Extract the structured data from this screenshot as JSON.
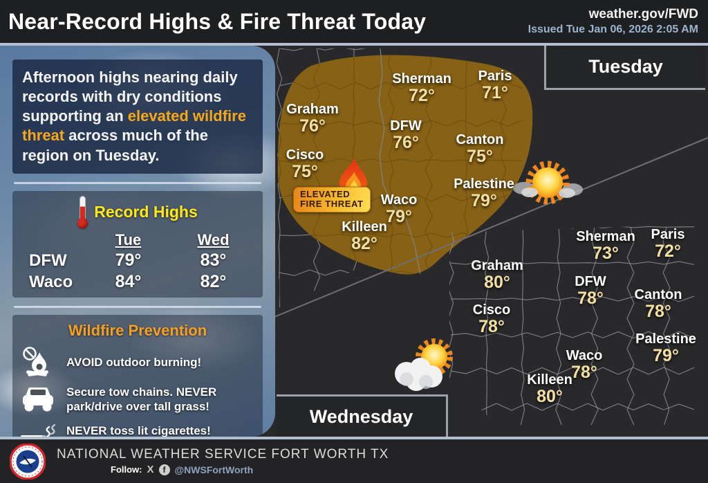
{
  "header": {
    "title": "Near-Record Highs & Fire Threat Today",
    "site": "weather.gov/FWD",
    "issued": "Issued Tue Jan 06, 2026 2:05 AM"
  },
  "summary": {
    "pre": "Afternoon highs nearing daily records with dry conditions supporting an ",
    "highlight": "elevated wildfire threat",
    "post": " across much of the region on Tuesday."
  },
  "record_highs": {
    "title": "Record Highs",
    "columns": [
      "Tue",
      "Wed"
    ],
    "rows": [
      {
        "city": "DFW",
        "tue": "79°",
        "wed": "83°"
      },
      {
        "city": "Waco",
        "tue": "84°",
        "wed": "82°"
      }
    ]
  },
  "wildfire_prevention": {
    "title": "Wildfire Prevention",
    "tips": [
      {
        "icon": "no-burning-icon",
        "text": "AVOID outdoor burning!"
      },
      {
        "icon": "car-icon",
        "text": "Secure tow chains. NEVER park/drive over tall grass!"
      },
      {
        "icon": "cigarette-icon",
        "text": "NEVER toss lit cigarettes!"
      }
    ]
  },
  "fire_threat_badge": {
    "line1": "ELEVATED",
    "line2": "FIRE THREAT"
  },
  "maps": {
    "tuesday": {
      "label": "Tuesday",
      "condition_icon": "mostly-sunny-icon",
      "cities": [
        {
          "name": "Sherman",
          "temp": "72°"
        },
        {
          "name": "Paris",
          "temp": "71°"
        },
        {
          "name": "Graham",
          "temp": "76°"
        },
        {
          "name": "DFW",
          "temp": "76°"
        },
        {
          "name": "Canton",
          "temp": "75°"
        },
        {
          "name": "Cisco",
          "temp": "75°"
        },
        {
          "name": "Palestine",
          "temp": "79°"
        },
        {
          "name": "Waco",
          "temp": "79°"
        },
        {
          "name": "Killeen",
          "temp": "82°"
        }
      ]
    },
    "wednesday": {
      "label": "Wednesday",
      "condition_icon": "partly-cloudy-icon",
      "cities": [
        {
          "name": "Sherman",
          "temp": "73°"
        },
        {
          "name": "Paris",
          "temp": "72°"
        },
        {
          "name": "Graham",
          "temp": "80°"
        },
        {
          "name": "DFW",
          "temp": "78°"
        },
        {
          "name": "Canton",
          "temp": "78°"
        },
        {
          "name": "Cisco",
          "temp": "78°"
        },
        {
          "name": "Palestine",
          "temp": "79°"
        },
        {
          "name": "Waco",
          "temp": "78°"
        },
        {
          "name": "Killeen",
          "temp": "80°"
        }
      ]
    }
  },
  "footer": {
    "org": "NATIONAL WEATHER SERVICE FORT WORTH TX",
    "follow": "Follow:",
    "handle": "@NWSFortWorth"
  },
  "colors": {
    "accent_orange": "#f5a81c",
    "record_yellow": "#ffe81a",
    "temp_cream": "#f3dfa2",
    "fire_area_brown": "#8a6315",
    "issued_blue": "#9cb3d0"
  }
}
